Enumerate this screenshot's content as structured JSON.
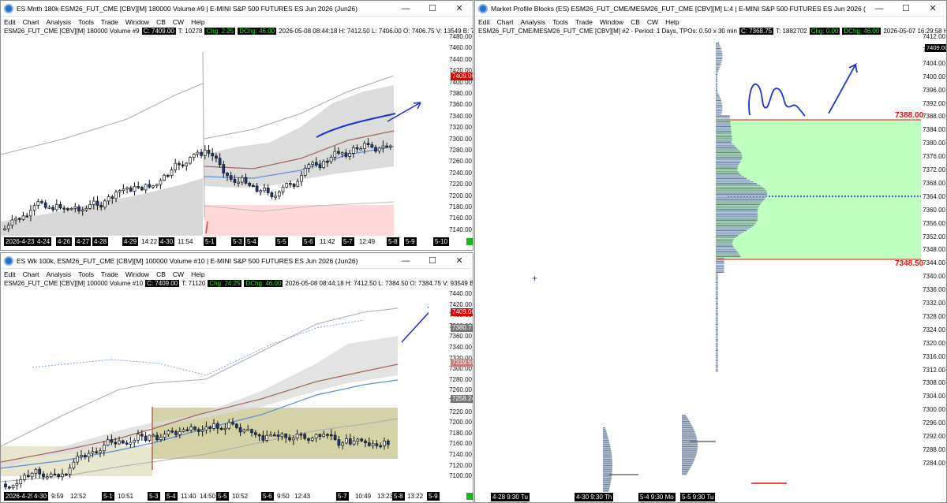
{
  "win1": {
    "title": "ES Mnth 180k ESM26_FUT_CME [CBV][M]  180000 Volume #9 | E-MINI S&P 500 FUTURES ES Jun 2026 (Jun26)",
    "menu": [
      "Edit",
      "Chart",
      "Analysis",
      "Tools",
      "Trade",
      "Window",
      "CB",
      "CW",
      "Help"
    ],
    "info": {
      "symbol": "ESM26_FUT_CME [CBV][M]  180000 Volume #9",
      "c": "C: 7409.00",
      "t": "T: 10278",
      "chg": "Chg: 2.25",
      "dchg": "DChg: 46.00",
      "rest": "2026-05-08 08:44:18 H: 7412.50 L: 7406.00 O: 7406.75 V: 13549 B: 7409.00 A: 7409.25 1"
    },
    "yticks": [
      "7480.00",
      "7460.00",
      "7440.00",
      "7420.00",
      "7400.00",
      "7380.00",
      "7360.00",
      "7340.00",
      "7320.00",
      "7300.00",
      "7280.00",
      "7260.00",
      "7240.00",
      "7220.00",
      "7200.00",
      "7180.00",
      "7160.00",
      "7140.00"
    ],
    "price_tag": "7409.00",
    "xticks": [
      {
        "t": "2026-4-23",
        "b": true
      },
      {
        "t": "4-24",
        "b": true
      },
      {
        "t": "4-26",
        "b": true
      },
      {
        "t": "4-27",
        "b": true
      },
      {
        "t": "4-28",
        "b": true
      },
      {
        "t": "4-29",
        "b": true
      },
      {
        "t": "14:22",
        "b": false
      },
      {
        "t": "4-30",
        "b": true
      },
      {
        "t": "11:54",
        "b": false
      },
      {
        "t": "5-1",
        "b": true
      },
      {
        "t": "5-3",
        "b": true
      },
      {
        "t": "5-4",
        "b": true
      },
      {
        "t": "5-5",
        "b": true
      },
      {
        "t": "5-6",
        "b": true
      },
      {
        "t": "11:42",
        "b": false
      },
      {
        "t": "5-7",
        "b": true
      },
      {
        "t": "12:49",
        "b": false
      },
      {
        "t": "5-8",
        "b": true
      },
      {
        "t": "5-9",
        "b": true
      },
      {
        "t": "5-10",
        "b": true
      }
    ]
  },
  "win2": {
    "title": "ES Wk 100k, ESM26_FUT_CME [CBV][M]  100000 Volume #10 | E-MINI S&P 500 FUTURES ES Jun 2026 (Jun26)",
    "menu": [
      "Edit",
      "Chart",
      "Analysis",
      "Tools",
      "Trade",
      "Window",
      "CB",
      "CW",
      "Help"
    ],
    "info": {
      "symbol": "ESM26_FUT_CME [CBV][M]  100000 Volume #10",
      "c": "C: 7409.00",
      "t": "T: 71120",
      "chg": "Chg: 24.25",
      "dchg": "DChg: 46.00",
      "rest": "2026-05-08 08:44:18 H: 7412.50 L: 7384.50 O: 7384.75 V: 93549 B: 7409.00 A: 7409.2"
    },
    "yticks": [
      "7440.00",
      "7420.00",
      "7400.00",
      "7380.00",
      "7360.00",
      "7340.00",
      "7320.00",
      "7300.00",
      "7280.00",
      "7260.00",
      "7240.00",
      "7220.00",
      "7200.00",
      "7180.00",
      "7160.00",
      "7140.00",
      "7120.00",
      "7100.00"
    ],
    "price_tag": "7409.00",
    "tag2": "7380.77",
    "tag3": "7319.50",
    "tag4": "7258.24",
    "xticks": [
      {
        "t": "2026-4-29",
        "b": true
      },
      {
        "t": "4-30",
        "b": true
      },
      {
        "t": "9:59",
        "b": false
      },
      {
        "t": "12:52",
        "b": false
      },
      {
        "t": "5-1",
        "b": true
      },
      {
        "t": "10:51",
        "b": false
      },
      {
        "t": "5-3",
        "b": true
      },
      {
        "t": "5-4",
        "b": true
      },
      {
        "t": "11:40",
        "b": false
      },
      {
        "t": "14:50",
        "b": false
      },
      {
        "t": "5-5",
        "b": true
      },
      {
        "t": "10:52",
        "b": false
      },
      {
        "t": "5-6",
        "b": true
      },
      {
        "t": "9:50",
        "b": false
      },
      {
        "t": "12:43",
        "b": false
      },
      {
        "t": "5-7",
        "b": true
      },
      {
        "t": "10:49",
        "b": false
      },
      {
        "t": "13:23",
        "b": false
      },
      {
        "t": "5-8",
        "b": true
      },
      {
        "t": "13:22",
        "b": false
      },
      {
        "t": "5-9",
        "b": true
      }
    ]
  },
  "win3": {
    "title": "Market Profile Blocks (ES) ESM26_FUT_CME/MESM26_FUT_CME [CBV][M] L:4 | E-MINI S&P 500 FUTURES ES Jun 2026 (Jun26)  (ESM26_FUT_CME/...",
    "menu": [
      "Edit",
      "Chart",
      "Analysis",
      "Tools",
      "Trade",
      "Window",
      "CB",
      "CW",
      "Help"
    ],
    "info": {
      "symbol": "ESM26_FUT_CME/MESM26_FUT_CME [CBV][M] #2 - Period: 1 Days, TPOs: 0.50 x 30 min",
      "c": "C: 7368.75",
      "t": "T: 1882702",
      "chg": "Chg: 0.00",
      "dchg": "DChg: 46.00",
      "rest": "2026-05-07 16:29:58 H: 7410.00 L: 7327."
    },
    "yticks": [
      "7412.00",
      "7409.00",
      "7404.00",
      "7400.00",
      "7396.00",
      "7392.00",
      "7388.00",
      "7384.00",
      "7380.00",
      "7376.00",
      "7372.00",
      "7368.00",
      "7364.00",
      "7360.00",
      "7356.00",
      "7352.00",
      "7348.00",
      "7344.00",
      "7340.00",
      "7336.00",
      "7332.00",
      "7328.00",
      "7324.00",
      "7320.00",
      "7316.00",
      "7312.00",
      "7308.00",
      "7304.00",
      "7300.00",
      "7296.00",
      "7292.00",
      "7288.00",
      "7284.00"
    ],
    "price_tag": "7409.00",
    "vah": "7388.00",
    "val": "7348.50",
    "xticks": [
      {
        "t": "4-28  9:30 Tu",
        "b": true
      },
      {
        "t": "4-30  9:30 Th",
        "b": true
      },
      {
        "t": "5-4  9:30 Mo",
        "b": true
      },
      {
        "t": "5-5  9:30 Tu",
        "b": true
      }
    ]
  },
  "colors": {
    "candle_up": "#ffffff",
    "candle_down": "#1c3a8c",
    "annotation": "#1a2fd6",
    "value_area": "#bfffbf",
    "vah_line": "#e01010",
    "price_tag": "#e00000",
    "zone_pink": "#ffd9d9",
    "zone_khaki": "#d5d2a8"
  }
}
